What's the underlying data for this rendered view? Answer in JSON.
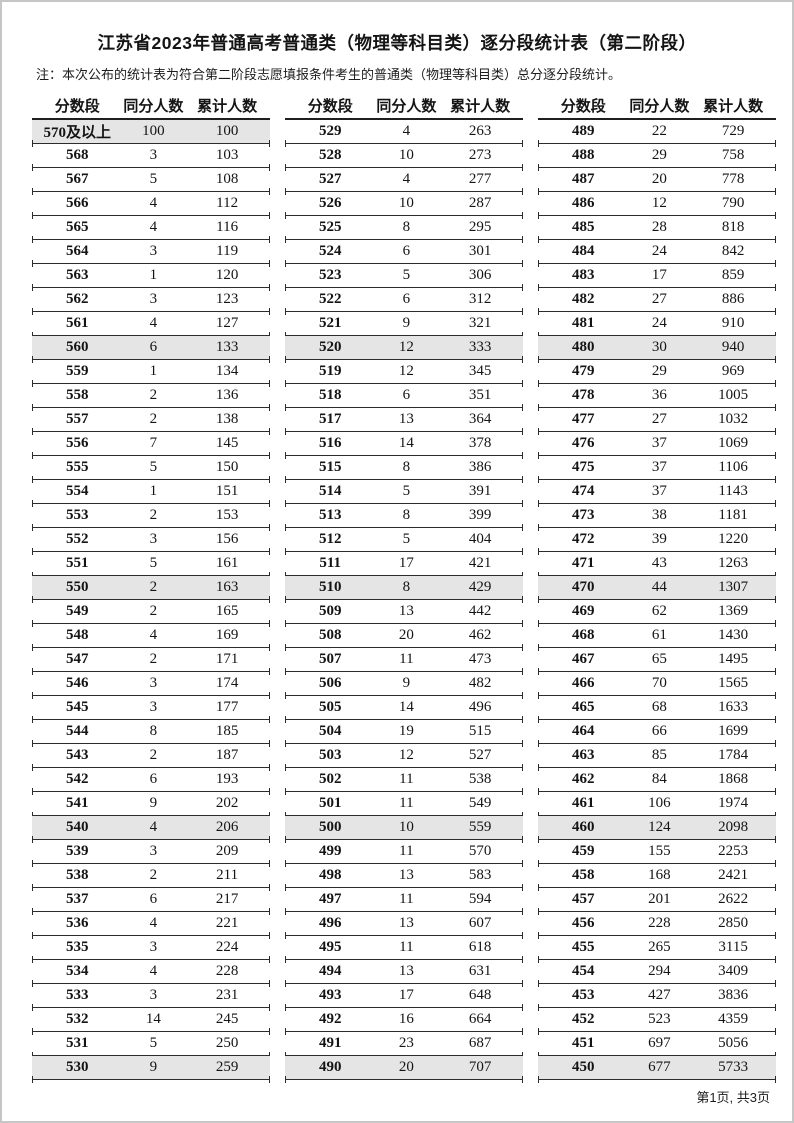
{
  "title": "江苏省2023年普通高考普通类（物理等科目类）逐分段统计表（第二阶段）",
  "note": "注：本次公布的统计表为符合第二阶段志愿填报条件考生的普通类（物理等科目类）总分逐分段统计。",
  "columns": [
    "分数段",
    "同分人数",
    "累计人数"
  ],
  "footer": "第1页, 共3页",
  "shade_color": "#e5e5e5",
  "tables": [
    {
      "rows": [
        [
          "570及以上",
          "100",
          "100"
        ],
        [
          "568",
          "3",
          "103"
        ],
        [
          "567",
          "5",
          "108"
        ],
        [
          "566",
          "4",
          "112"
        ],
        [
          "565",
          "4",
          "116"
        ],
        [
          "564",
          "3",
          "119"
        ],
        [
          "563",
          "1",
          "120"
        ],
        [
          "562",
          "3",
          "123"
        ],
        [
          "561",
          "4",
          "127"
        ],
        [
          "560",
          "6",
          "133"
        ],
        [
          "559",
          "1",
          "134"
        ],
        [
          "558",
          "2",
          "136"
        ],
        [
          "557",
          "2",
          "138"
        ],
        [
          "556",
          "7",
          "145"
        ],
        [
          "555",
          "5",
          "150"
        ],
        [
          "554",
          "1",
          "151"
        ],
        [
          "553",
          "2",
          "153"
        ],
        [
          "552",
          "3",
          "156"
        ],
        [
          "551",
          "5",
          "161"
        ],
        [
          "550",
          "2",
          "163"
        ],
        [
          "549",
          "2",
          "165"
        ],
        [
          "548",
          "4",
          "169"
        ],
        [
          "547",
          "2",
          "171"
        ],
        [
          "546",
          "3",
          "174"
        ],
        [
          "545",
          "3",
          "177"
        ],
        [
          "544",
          "8",
          "185"
        ],
        [
          "543",
          "2",
          "187"
        ],
        [
          "542",
          "6",
          "193"
        ],
        [
          "541",
          "9",
          "202"
        ],
        [
          "540",
          "4",
          "206"
        ],
        [
          "539",
          "3",
          "209"
        ],
        [
          "538",
          "2",
          "211"
        ],
        [
          "537",
          "6",
          "217"
        ],
        [
          "536",
          "4",
          "221"
        ],
        [
          "535",
          "3",
          "224"
        ],
        [
          "534",
          "4",
          "228"
        ],
        [
          "533",
          "3",
          "231"
        ],
        [
          "532",
          "14",
          "245"
        ],
        [
          "531",
          "5",
          "250"
        ],
        [
          "530",
          "9",
          "259"
        ]
      ]
    },
    {
      "rows": [
        [
          "529",
          "4",
          "263"
        ],
        [
          "528",
          "10",
          "273"
        ],
        [
          "527",
          "4",
          "277"
        ],
        [
          "526",
          "10",
          "287"
        ],
        [
          "525",
          "8",
          "295"
        ],
        [
          "524",
          "6",
          "301"
        ],
        [
          "523",
          "5",
          "306"
        ],
        [
          "522",
          "6",
          "312"
        ],
        [
          "521",
          "9",
          "321"
        ],
        [
          "520",
          "12",
          "333"
        ],
        [
          "519",
          "12",
          "345"
        ],
        [
          "518",
          "6",
          "351"
        ],
        [
          "517",
          "13",
          "364"
        ],
        [
          "516",
          "14",
          "378"
        ],
        [
          "515",
          "8",
          "386"
        ],
        [
          "514",
          "5",
          "391"
        ],
        [
          "513",
          "8",
          "399"
        ],
        [
          "512",
          "5",
          "404"
        ],
        [
          "511",
          "17",
          "421"
        ],
        [
          "510",
          "8",
          "429"
        ],
        [
          "509",
          "13",
          "442"
        ],
        [
          "508",
          "20",
          "462"
        ],
        [
          "507",
          "11",
          "473"
        ],
        [
          "506",
          "9",
          "482"
        ],
        [
          "505",
          "14",
          "496"
        ],
        [
          "504",
          "19",
          "515"
        ],
        [
          "503",
          "12",
          "527"
        ],
        [
          "502",
          "11",
          "538"
        ],
        [
          "501",
          "11",
          "549"
        ],
        [
          "500",
          "10",
          "559"
        ],
        [
          "499",
          "11",
          "570"
        ],
        [
          "498",
          "13",
          "583"
        ],
        [
          "497",
          "11",
          "594"
        ],
        [
          "496",
          "13",
          "607"
        ],
        [
          "495",
          "11",
          "618"
        ],
        [
          "494",
          "13",
          "631"
        ],
        [
          "493",
          "17",
          "648"
        ],
        [
          "492",
          "16",
          "664"
        ],
        [
          "491",
          "23",
          "687"
        ],
        [
          "490",
          "20",
          "707"
        ]
      ]
    },
    {
      "rows": [
        [
          "489",
          "22",
          "729"
        ],
        [
          "488",
          "29",
          "758"
        ],
        [
          "487",
          "20",
          "778"
        ],
        [
          "486",
          "12",
          "790"
        ],
        [
          "485",
          "28",
          "818"
        ],
        [
          "484",
          "24",
          "842"
        ],
        [
          "483",
          "17",
          "859"
        ],
        [
          "482",
          "27",
          "886"
        ],
        [
          "481",
          "24",
          "910"
        ],
        [
          "480",
          "30",
          "940"
        ],
        [
          "479",
          "29",
          "969"
        ],
        [
          "478",
          "36",
          "1005"
        ],
        [
          "477",
          "27",
          "1032"
        ],
        [
          "476",
          "37",
          "1069"
        ],
        [
          "475",
          "37",
          "1106"
        ],
        [
          "474",
          "37",
          "1143"
        ],
        [
          "473",
          "38",
          "1181"
        ],
        [
          "472",
          "39",
          "1220"
        ],
        [
          "471",
          "43",
          "1263"
        ],
        [
          "470",
          "44",
          "1307"
        ],
        [
          "469",
          "62",
          "1369"
        ],
        [
          "468",
          "61",
          "1430"
        ],
        [
          "467",
          "65",
          "1495"
        ],
        [
          "466",
          "70",
          "1565"
        ],
        [
          "465",
          "68",
          "1633"
        ],
        [
          "464",
          "66",
          "1699"
        ],
        [
          "463",
          "85",
          "1784"
        ],
        [
          "462",
          "84",
          "1868"
        ],
        [
          "461",
          "106",
          "1974"
        ],
        [
          "460",
          "124",
          "2098"
        ],
        [
          "459",
          "155",
          "2253"
        ],
        [
          "458",
          "168",
          "2421"
        ],
        [
          "457",
          "201",
          "2622"
        ],
        [
          "456",
          "228",
          "2850"
        ],
        [
          "455",
          "265",
          "3115"
        ],
        [
          "454",
          "294",
          "3409"
        ],
        [
          "453",
          "427",
          "3836"
        ],
        [
          "452",
          "523",
          "4359"
        ],
        [
          "451",
          "697",
          "5056"
        ],
        [
          "450",
          "677",
          "5733"
        ]
      ]
    }
  ]
}
